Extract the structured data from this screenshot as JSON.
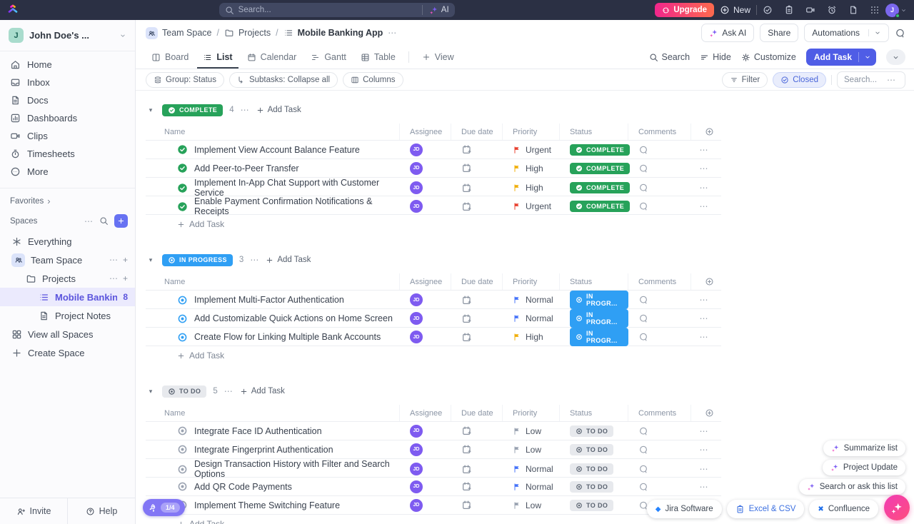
{
  "colors": {
    "accent": "#5b54dd",
    "topbar": "#2b3044",
    "complete": "#27a25a",
    "in_progress": "#2f9ff4",
    "todo_icon": "#9aa2b0",
    "urgent": "#e8402f",
    "high": "#f0ad00",
    "normal": "#4573fa",
    "low": "#98a1b0",
    "upgrade_from": "#f0268c",
    "upgrade_to": "#fd6a4d",
    "fab_from": "#f13ab5",
    "fab_to": "#fe4f7d"
  },
  "topbar": {
    "search_placeholder": "Search...",
    "ai_label": "AI",
    "upgrade_label": "Upgrade",
    "new_label": "New",
    "avatar_initial": "J",
    "icons": [
      "check-ring",
      "clipboard",
      "video",
      "alarm",
      "file",
      "grid9"
    ]
  },
  "sidebar": {
    "workspace": {
      "initial": "J",
      "name": "John Doe's ..."
    },
    "nav": [
      {
        "label": "Home",
        "icon": "home"
      },
      {
        "label": "Inbox",
        "icon": "inbox"
      },
      {
        "label": "Docs",
        "icon": "doc"
      },
      {
        "label": "Dashboards",
        "icon": "dashboards"
      },
      {
        "label": "Clips",
        "icon": "video"
      },
      {
        "label": "Timesheets",
        "icon": "timer"
      },
      {
        "label": "More",
        "icon": "more"
      }
    ],
    "favorites_label": "Favorites",
    "spaces_label": "Spaces",
    "space_items": [
      {
        "label": "Everything",
        "icon": "asterisk",
        "level": 0
      },
      {
        "label": "Team Space",
        "icon": "people",
        "level": 0,
        "tile": true,
        "actions": true
      },
      {
        "label": "Projects",
        "icon": "folder",
        "level": 1,
        "actions": true
      },
      {
        "label": "Mobile Banking App",
        "icon": "list",
        "level": 2,
        "selected": true,
        "count": "8"
      },
      {
        "label": "Project Notes",
        "icon": "doc",
        "level": 2
      },
      {
        "label": "View all Spaces",
        "icon": "grid4",
        "level": 0
      },
      {
        "label": "Create Space",
        "icon": "plus",
        "level": 0
      }
    ],
    "footer": {
      "invite": "Invite",
      "help": "Help",
      "onboarding_progress": "1/4"
    }
  },
  "header": {
    "breadcrumb": [
      {
        "label": "Team Space",
        "icon": "people",
        "tile": true
      },
      {
        "label": "Projects",
        "icon": "folder"
      },
      {
        "label": "Mobile Banking App",
        "icon": "list",
        "current": true
      }
    ],
    "ask_ai": "Ask AI",
    "share": "Share",
    "automations": "Automations"
  },
  "tabs": {
    "items": [
      {
        "label": "Board",
        "icon": "board",
        "active": false
      },
      {
        "label": "List",
        "icon": "list",
        "active": true
      },
      {
        "label": "Calendar",
        "icon": "calendar",
        "active": false
      },
      {
        "label": "Gantt",
        "icon": "gantt",
        "active": false
      },
      {
        "label": "Table",
        "icon": "table",
        "active": false
      }
    ],
    "add_view": "View",
    "right": {
      "search": "Search",
      "hide": "Hide",
      "customize": "Customize",
      "add_task": "Add Task"
    }
  },
  "toolbar": {
    "group": "Group: Status",
    "subtasks": "Subtasks: Collapse all",
    "columns": "Columns",
    "filter": "Filter",
    "closed": "Closed",
    "search_placeholder": "Search..."
  },
  "table": {
    "columns": [
      "Name",
      "Assignee",
      "Due date",
      "Priority",
      "Status",
      "Comments"
    ],
    "add_task_label": "Add Task"
  },
  "groups": [
    {
      "label": "COMPLETE",
      "count": "4",
      "style": "complete",
      "tasks": [
        {
          "name": "Implement View Account Balance Feature",
          "assignee": "JD",
          "priority": "Urgent",
          "status_label": "COMPLETE"
        },
        {
          "name": "Add Peer-to-Peer Transfer",
          "assignee": "JD",
          "priority": "High",
          "status_label": "COMPLETE"
        },
        {
          "name": "Implement In-App Chat Support with Customer Service",
          "assignee": "JD",
          "priority": "High",
          "status_label": "COMPLETE"
        },
        {
          "name": "Enable Payment Confirmation Notifications & Receipts",
          "assignee": "JD",
          "priority": "Urgent",
          "status_label": "COMPLETE"
        }
      ]
    },
    {
      "label": "IN PROGRESS",
      "count": "3",
      "style": "in-progress",
      "tasks": [
        {
          "name": "Implement Multi-Factor Authentication",
          "assignee": "JD",
          "priority": "Normal",
          "status_label": "IN PROGR..."
        },
        {
          "name": "Add Customizable Quick Actions on Home Screen",
          "assignee": "JD",
          "priority": "Normal",
          "status_label": "IN PROGR..."
        },
        {
          "name": "Create Flow for Linking Multiple Bank Accounts",
          "assignee": "JD",
          "priority": "High",
          "status_label": "IN PROGR..."
        }
      ]
    },
    {
      "label": "TO DO",
      "count": "5",
      "style": "todo",
      "tasks": [
        {
          "name": "Integrate Face ID Authentication",
          "assignee": "JD",
          "priority": "Low",
          "status_label": "TO DO"
        },
        {
          "name": "Integrate Fingerprint Authentication",
          "assignee": "JD",
          "priority": "Low",
          "status_label": "TO DO"
        },
        {
          "name": "Design Transaction History with Filter and Search Options",
          "assignee": "JD",
          "priority": "Normal",
          "status_label": "TO DO"
        },
        {
          "name": "Add QR Code Payments",
          "assignee": "JD",
          "priority": "Normal",
          "status_label": "TO DO"
        },
        {
          "name": "Implement Theme Switching Feature",
          "assignee": "JD",
          "priority": "Low",
          "status_label": "TO DO"
        }
      ]
    }
  ],
  "floating_actions": [
    "Summarize list",
    "Project Update",
    "Search or ask this list"
  ],
  "embeds": [
    {
      "label": "Jira Software",
      "glyph": "diamond",
      "color": "#2684ff",
      "highlight": false
    },
    {
      "label": "Excel & CSV",
      "glyph": "sheet",
      "color": "#3b6fe0",
      "highlight": true
    },
    {
      "label": "Confluence",
      "glyph": "cross",
      "color": "#1f6fea",
      "highlight": false
    }
  ]
}
